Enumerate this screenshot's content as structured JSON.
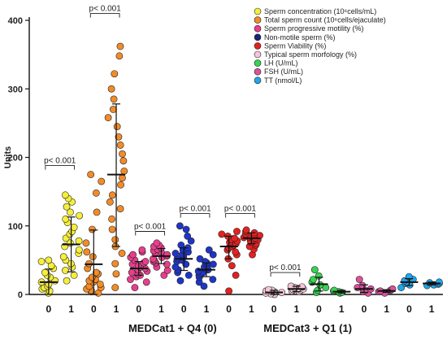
{
  "chart_data": {
    "type": "scatter",
    "ylabel": "Units",
    "ylim": [
      0,
      400
    ],
    "yticks": [
      0,
      100,
      200,
      300,
      400
    ],
    "group_labels": [
      "MEDCat1 + Q4 (0)",
      "MEDCat3 + Q1 (1)"
    ],
    "legend": [
      {
        "label": "Sperm concentration (10⁶cells/mL)",
        "color": "#f5ef3a"
      },
      {
        "label": "Total sperm count (10⁶cells/ejaculate)",
        "color": "#f28c28"
      },
      {
        "label": "Sperm progressive motility (%)",
        "color": "#e83e8c"
      },
      {
        "label": "Non-motile sperm (%)",
        "color": "#1f1f7a"
      },
      {
        "label": "Sperm Viability (%)",
        "color": "#e62020"
      },
      {
        "label": "Typical sperm morfology (%)",
        "color": "#f4c6d8"
      },
      {
        "label": "LH (U/mL)",
        "color": "#39d353"
      },
      {
        "label": "FSH (U/mL)",
        "color": "#d9539a"
      },
      {
        "label": "TT (nmol/L)",
        "color": "#1ea7ef"
      }
    ],
    "series": [
      {
        "category": "0",
        "color": "#f5ef3a",
        "mean": 18,
        "sd_low": 0,
        "sd_high": 37,
        "values": [
          2,
          5,
          8,
          10,
          12,
          15,
          18,
          20,
          25,
          28,
          32,
          38,
          42,
          48,
          50
        ]
      },
      {
        "category": "1",
        "color": "#f5ef3a",
        "mean": 73,
        "sd_low": 33,
        "sd_high": 113,
        "values": [
          20,
          28,
          35,
          40,
          45,
          50,
          55,
          60,
          65,
          70,
          75,
          78,
          82,
          88,
          92,
          98,
          105,
          110,
          115,
          120,
          128,
          135,
          140,
          145
        ]
      },
      {
        "category": "0",
        "color": "#f28c28",
        "mean": 44,
        "sd_low": 0,
        "sd_high": 94,
        "values": [
          2,
          4,
          6,
          8,
          10,
          12,
          15,
          18,
          20,
          22,
          25,
          30,
          32,
          38,
          45,
          55,
          62,
          75,
          95,
          120,
          148,
          165,
          175
        ]
      },
      {
        "category": "1",
        "color": "#f28c28",
        "mean": 175,
        "sd_low": 70,
        "sd_high": 278,
        "values": [
          10,
          30,
          45,
          60,
          70,
          80,
          95,
          110,
          125,
          135,
          145,
          160,
          170,
          180,
          195,
          205,
          218,
          230,
          245,
          258,
          270,
          285,
          300,
          322,
          348,
          362
        ]
      },
      {
        "category": "0",
        "color": "#e83e8c",
        "mean": 38,
        "sd_low": 28,
        "sd_high": 48,
        "values": [
          10,
          18,
          22,
          26,
          28,
          30,
          32,
          34,
          36,
          38,
          40,
          42,
          44,
          46,
          48,
          50,
          54,
          58,
          62,
          65
        ]
      },
      {
        "category": "1",
        "color": "#e83e8c",
        "mean": 56,
        "sd_low": 45,
        "sd_high": 67,
        "values": [
          28,
          35,
          40,
          44,
          46,
          48,
          50,
          52,
          54,
          56,
          58,
          60,
          62,
          64,
          66,
          68,
          70,
          72,
          75
        ]
      },
      {
        "category": "0",
        "color": "#1f35c9",
        "mean": 52,
        "sd_low": 35,
        "sd_high": 68,
        "values": [
          20,
          28,
          32,
          36,
          40,
          44,
          48,
          50,
          52,
          55,
          58,
          60,
          62,
          65,
          68,
          72,
          78,
          85,
          95,
          100
        ]
      },
      {
        "category": "1",
        "color": "#1f35c9",
        "mean": 36,
        "sd_low": 26,
        "sd_high": 46,
        "values": [
          12,
          18,
          22,
          25,
          28,
          30,
          32,
          34,
          36,
          38,
          40,
          42,
          44,
          46,
          48,
          52,
          58,
          65
        ]
      },
      {
        "category": "0",
        "color": "#e62020",
        "mean": 70,
        "sd_low": 52,
        "sd_high": 85,
        "values": [
          5,
          28,
          42,
          52,
          58,
          62,
          65,
          68,
          70,
          72,
          74,
          76,
          78,
          80,
          82,
          85,
          88,
          92
        ]
      },
      {
        "category": "1",
        "color": "#e62020",
        "mean": 82,
        "sd_low": 74,
        "sd_high": 90,
        "values": [
          58,
          66,
          70,
          72,
          74,
          76,
          78,
          80,
          82,
          83,
          84,
          85,
          86,
          87,
          88,
          90,
          92,
          94
        ]
      },
      {
        "category": "0",
        "color": "#f4c6d8",
        "mean": 3,
        "sd_low": 0,
        "sd_high": 6,
        "values": [
          0,
          1,
          2,
          3,
          4,
          5,
          6,
          7
        ]
      },
      {
        "category": "1",
        "color": "#f4c6d8",
        "mean": 8,
        "sd_low": 4,
        "sd_high": 12,
        "values": [
          4,
          5,
          6,
          7,
          8,
          9,
          10,
          11,
          12
        ]
      },
      {
        "category": "0",
        "color": "#39d353",
        "mean": 15,
        "sd_low": 5,
        "sd_high": 25,
        "values": [
          3,
          6,
          10,
          14,
          18,
          22,
          27,
          36
        ]
      },
      {
        "category": "1",
        "color": "#39d353",
        "mean": 4,
        "sd_low": 2,
        "sd_high": 6,
        "values": [
          2,
          3,
          4,
          5,
          6
        ]
      },
      {
        "category": "0",
        "color": "#d9539a",
        "mean": 8,
        "sd_low": 3,
        "sd_high": 14,
        "values": [
          2,
          4,
          6,
          8,
          10,
          13,
          22
        ]
      },
      {
        "category": "1",
        "color": "#d9539a",
        "mean": 5,
        "sd_low": 3,
        "sd_high": 7,
        "values": [
          2,
          4,
          5,
          6,
          8
        ]
      },
      {
        "category": "0",
        "color": "#1ea7ef",
        "mean": 18,
        "sd_low": 13,
        "sd_high": 23,
        "values": [
          10,
          14,
          16,
          18,
          20,
          22,
          26
        ]
      },
      {
        "category": "1",
        "color": "#1ea7ef",
        "mean": 16,
        "sd_low": 14,
        "sd_high": 18,
        "values": [
          13,
          14,
          15,
          16,
          17,
          18
        ]
      }
    ],
    "annotations": [
      {
        "text": "p< 0.001",
        "from": 0,
        "to": 1,
        "y": 188
      },
      {
        "text": "p< 0.001",
        "from": 2,
        "to": 3,
        "y": 410
      },
      {
        "text": "p< 0.001",
        "from": 4,
        "to": 5,
        "y": 92
      },
      {
        "text": "p< 0.001",
        "from": 6,
        "to": 7,
        "y": 118
      },
      {
        "text": "p< 0.001",
        "from": 8,
        "to": 9,
        "y": 118
      },
      {
        "text": "p< 0.001",
        "from": 10,
        "to": 11,
        "y": 32
      }
    ]
  }
}
